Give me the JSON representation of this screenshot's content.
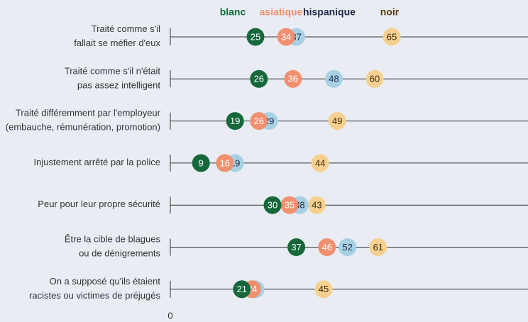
{
  "chart_data": {
    "type": "dot",
    "categories": [
      "Traité comme s'il\nfallait se méfier d'eux",
      "Traité comme s'il n'était\npas assez intelligent",
      "Traité différemment par l'employeur\n(embauche, rémunération, promotion)",
      "Injustement arrêté par la police",
      "Peur pour leur propre sécurité",
      "Être la cible de blagues\nou de dénigrements",
      "On a supposé qu'ils étaient\nracistes ou victimes de préjugés"
    ],
    "series": [
      {
        "name": "blanc",
        "color": "#16683a",
        "values": [
          25,
          26,
          19,
          9,
          30,
          37,
          21
        ]
      },
      {
        "name": "asiatique",
        "color": "#f0906f",
        "values": [
          34,
          36,
          26,
          16,
          35,
          46,
          24
        ]
      },
      {
        "name": "hispanique",
        "color": "#a8d0e4",
        "values": [
          37,
          48,
          29,
          19,
          38,
          52,
          25
        ]
      },
      {
        "name": "noir",
        "color": "#f6d08f",
        "values": [
          65,
          60,
          49,
          44,
          43,
          61,
          45
        ]
      }
    ],
    "xlim": [
      0,
      105
    ],
    "xticks": [
      0
    ]
  }
}
